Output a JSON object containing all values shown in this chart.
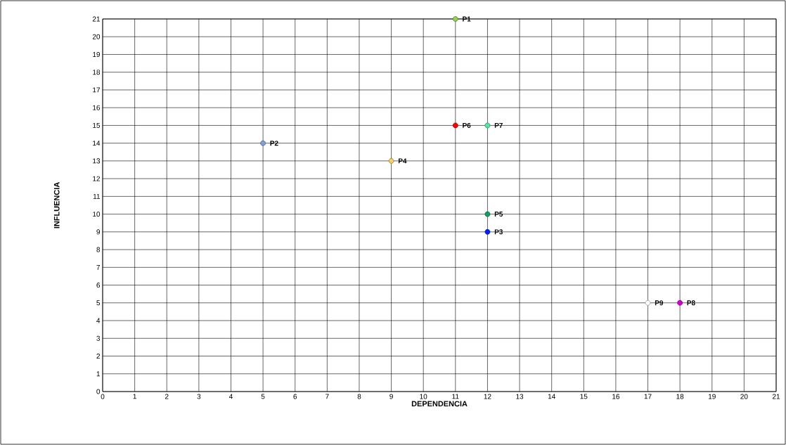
{
  "chart_data": {
    "type": "scatter",
    "xlabel": "DEPENDENCIA",
    "ylabel": "INFLUENCIA",
    "xlim": [
      0,
      21
    ],
    "ylim": [
      0,
      21
    ],
    "xticks": [
      0,
      1,
      2,
      3,
      4,
      5,
      6,
      7,
      8,
      9,
      10,
      11,
      12,
      13,
      14,
      15,
      16,
      17,
      18,
      19,
      20,
      21
    ],
    "yticks": [
      0,
      1,
      2,
      3,
      4,
      5,
      6,
      7,
      8,
      9,
      10,
      11,
      12,
      13,
      14,
      15,
      16,
      17,
      18,
      19,
      20,
      21
    ],
    "grid": true,
    "legend": false,
    "marker": "circle",
    "series": [
      {
        "name": "P1",
        "color": "#92d050",
        "x": [
          11
        ],
        "values": [
          21
        ]
      },
      {
        "name": "P2",
        "color": "#7f9fd8",
        "x": [
          5
        ],
        "values": [
          14
        ]
      },
      {
        "name": "P3",
        "color": "#0020ff",
        "x": [
          12
        ],
        "values": [
          9
        ]
      },
      {
        "name": "P4",
        "color": "#f4d06a",
        "x": [
          9
        ],
        "values": [
          13
        ]
      },
      {
        "name": "P5",
        "color": "#10a060",
        "x": [
          12
        ],
        "values": [
          10
        ]
      },
      {
        "name": "P6",
        "color": "#ff0000",
        "x": [
          11
        ],
        "values": [
          15
        ]
      },
      {
        "name": "P7",
        "color": "#50e8a0",
        "x": [
          12
        ],
        "values": [
          15
        ]
      },
      {
        "name": "P8",
        "color": "#d000d0",
        "x": [
          18
        ],
        "values": [
          5
        ]
      },
      {
        "name": "P9",
        "color": "#ffffff",
        "x": [
          17
        ],
        "values": [
          5
        ]
      }
    ]
  }
}
